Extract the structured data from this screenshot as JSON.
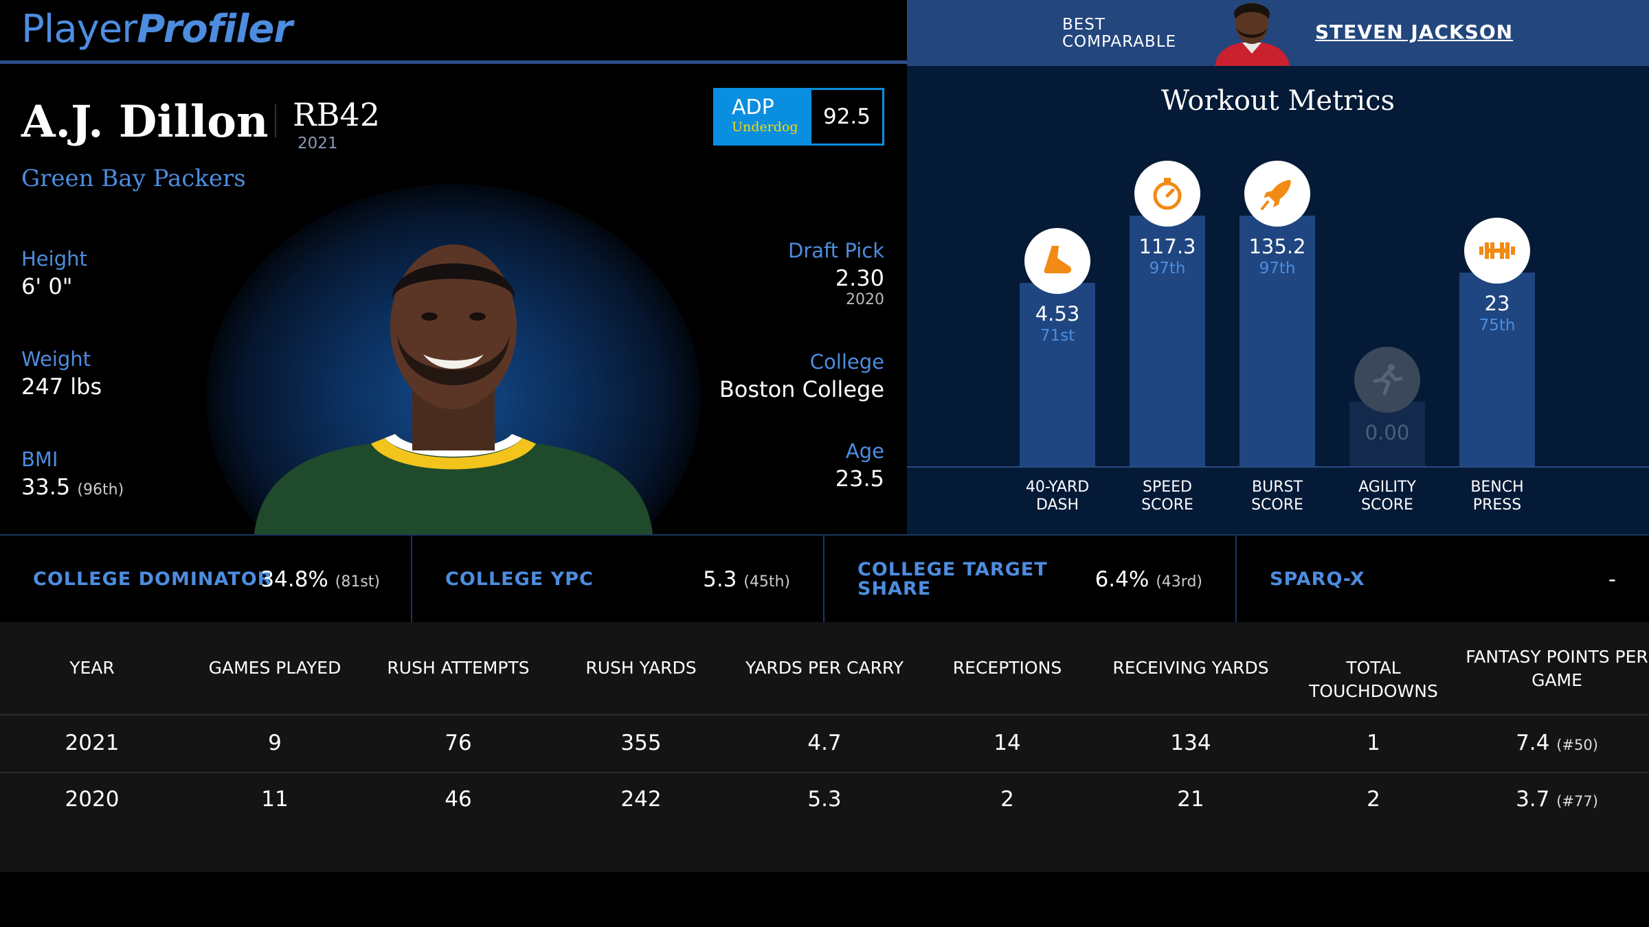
{
  "brand": {
    "part1": "Player",
    "part2": "Profiler"
  },
  "best_comparable": {
    "label_line1": "BEST",
    "label_line2": "COMPARABLE",
    "name": "STEVEN JACKSON"
  },
  "player": {
    "name": "A.J. Dillon",
    "rank": "RB42",
    "rank_year": "2021",
    "team": "Green Bay Packers",
    "adp": {
      "title": "ADP",
      "source": "Underdog",
      "value": "92.5"
    },
    "height": {
      "label": "Height",
      "value": "6' 0\""
    },
    "weight": {
      "label": "Weight",
      "value": "247 lbs"
    },
    "bmi": {
      "label": "BMI",
      "value": "33.5",
      "pct": "(96th)"
    },
    "draft_pick": {
      "label": "Draft Pick",
      "value": "2.30",
      "year": "2020"
    },
    "college": {
      "label": "College",
      "value": "Boston College"
    },
    "age": {
      "label": "Age",
      "value": "23.5"
    }
  },
  "workout": {
    "title": "Workout Metrics",
    "metrics": [
      {
        "label1": "40-YARD",
        "label2": "DASH",
        "value": "4.53",
        "pct": "71st",
        "icon": "shoe-icon",
        "fill": 0.71
      },
      {
        "label1": "SPEED",
        "label2": "SCORE",
        "value": "117.3",
        "pct": "97th",
        "icon": "stopwatch-icon",
        "fill": 0.97
      },
      {
        "label1": "BURST",
        "label2": "SCORE",
        "value": "135.2",
        "pct": "97th",
        "icon": "rocket-icon",
        "fill": 0.97
      },
      {
        "label1": "AGILITY",
        "label2": "SCORE",
        "value": "0.00",
        "pct": "",
        "icon": "runner-icon",
        "fill": 0.25
      },
      {
        "label1": "BENCH",
        "label2": "PRESS",
        "value": "23",
        "pct": "75th",
        "icon": "barbell-icon",
        "fill": 0.75
      }
    ]
  },
  "college_stats": [
    {
      "label": "COLLEGE DOMINATOR",
      "value": "34.8%",
      "pct": "(81st)"
    },
    {
      "label": "COLLEGE YPC",
      "value": "5.3",
      "pct": "(45th)"
    },
    {
      "label_line1": "COLLEGE TARGET",
      "label_line2": "SHARE",
      "value": "6.4%",
      "pct": "(43rd)"
    },
    {
      "label": "SPARQ-X",
      "value": "-",
      "pct": ""
    }
  ],
  "table": {
    "headers": [
      "YEAR",
      "GAMES PLAYED",
      "RUSH ATTEMPTS",
      "RUSH YARDS",
      "YARDS PER CARRY",
      "RECEPTIONS",
      "RECEIVING YARDS",
      "TOTAL TOUCHDOWNS",
      "FANTASY POINTS PER",
      "GAME"
    ],
    "rows": [
      {
        "year": "2021",
        "games": "9",
        "attempts": "76",
        "yards": "355",
        "ypc": "4.7",
        "rec": "14",
        "rec_yards": "134",
        "td": "1",
        "fp": "7.4",
        "fp_rank": "(#50)"
      },
      {
        "year": "2020",
        "games": "11",
        "attempts": "46",
        "yards": "242",
        "ypc": "5.3",
        "rec": "2",
        "rec_yards": "21",
        "td": "2",
        "fp": "3.7",
        "fp_rank": "(#77)"
      }
    ]
  },
  "colors": {
    "accent": "#4d8de0",
    "bar": "#1f4680",
    "icon_orange": "#f28a13",
    "adp_blue": "#0a8ee0"
  }
}
